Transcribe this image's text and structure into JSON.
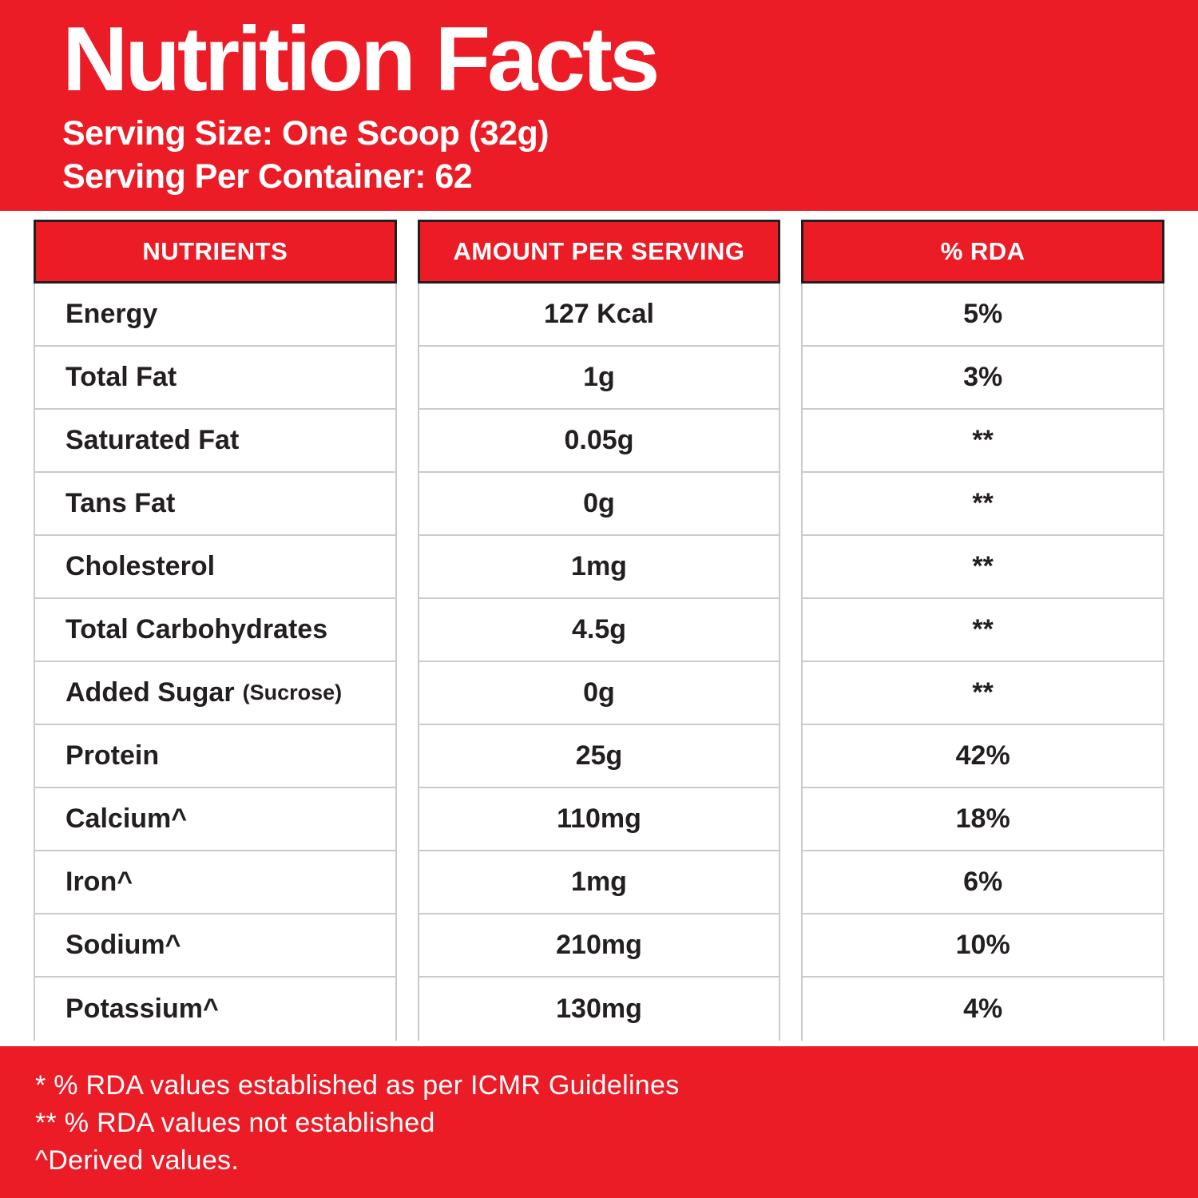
{
  "header": {
    "title": "Nutrition Facts",
    "serving_size": "Serving Size: One Scoop (32g)",
    "serving_per_container": "Serving Per Container: 62"
  },
  "table": {
    "columns": [
      "NUTRIENTS",
      "AMOUNT PER SERVING",
      "% RDA"
    ],
    "rows": [
      {
        "nutrient": "Energy",
        "note": "",
        "amount": "127 Kcal",
        "rda": "5%"
      },
      {
        "nutrient": "Total Fat",
        "note": "",
        "amount": "1g",
        "rda": "3%"
      },
      {
        "nutrient": "Saturated Fat",
        "note": "",
        "amount": "0.05g",
        "rda": "**"
      },
      {
        "nutrient": "Tans Fat",
        "note": "",
        "amount": "0g",
        "rda": "**"
      },
      {
        "nutrient": "Cholesterol",
        "note": "",
        "amount": "1mg",
        "rda": "**"
      },
      {
        "nutrient": "Total Carbohydrates",
        "note": "",
        "amount": "4.5g",
        "rda": "**"
      },
      {
        "nutrient": "Added Sugar",
        "note": "(Sucrose)",
        "amount": "0g",
        "rda": "**"
      },
      {
        "nutrient": "Protein",
        "note": "",
        "amount": "25g",
        "rda": "42%"
      },
      {
        "nutrient": "Calcium^",
        "note": "",
        "amount": "110mg",
        "rda": "18%"
      },
      {
        "nutrient": "Iron^",
        "note": "",
        "amount": "1mg",
        "rda": "6%"
      },
      {
        "nutrient": "Sodium^",
        "note": "",
        "amount": "210mg",
        "rda": "10%"
      },
      {
        "nutrient": "Potassium^",
        "note": "",
        "amount": "130mg",
        "rda": "4%"
      }
    ]
  },
  "footnotes": {
    "line1": "* % RDA values established as per ICMR Guidelines",
    "line2": "** % RDA values not established",
    "line3": "^Derived values."
  },
  "colors": {
    "brand_red": "#ec1c26",
    "text_dark": "#231f20",
    "row_border": "#cbcbcb",
    "header_cell_border": "#231f20"
  }
}
